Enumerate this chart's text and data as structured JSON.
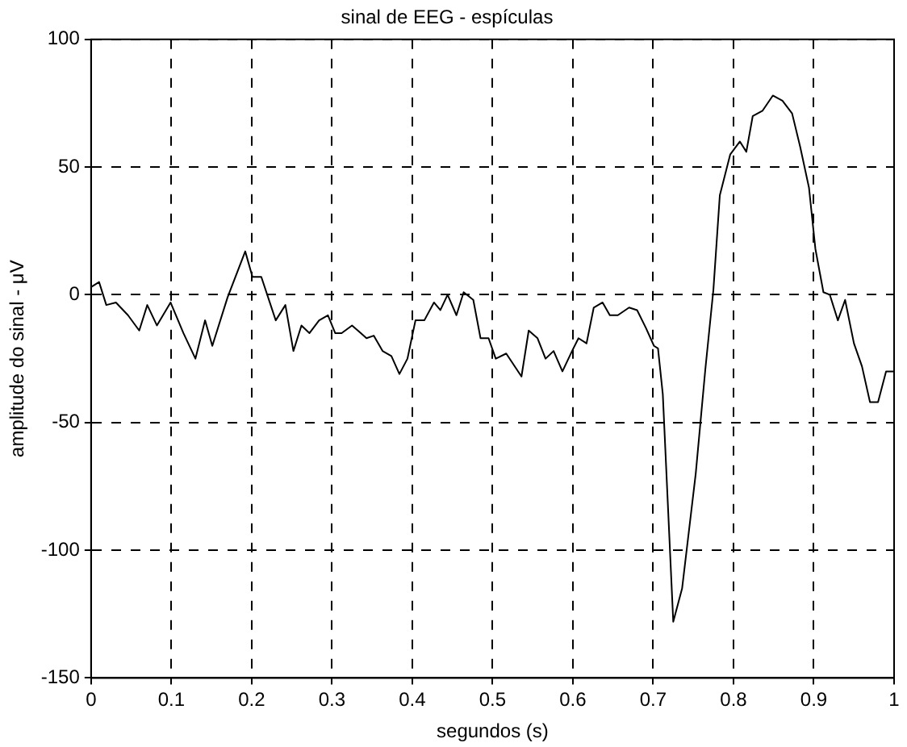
{
  "chart_data": {
    "type": "line",
    "title": "sinal de EEG - espículas",
    "xlabel": "segundos (s)",
    "ylabel": "amplitude do sinal - μV",
    "x": [
      0,
      0.01,
      0.019,
      0.031,
      0.046,
      0.06,
      0.07,
      0.082,
      0.099,
      0.115,
      0.13,
      0.142,
      0.151,
      0.17,
      0.192,
      0.201,
      0.212,
      0.23,
      0.242,
      0.252,
      0.262,
      0.272,
      0.284,
      0.295,
      0.304,
      0.312,
      0.325,
      0.336,
      0.343,
      0.352,
      0.363,
      0.374,
      0.384,
      0.394,
      0.404,
      0.415,
      0.427,
      0.435,
      0.444,
      0.455,
      0.464,
      0.476,
      0.485,
      0.495,
      0.504,
      0.517,
      0.536,
      0.545,
      0.556,
      0.566,
      0.576,
      0.587,
      0.599,
      0.607,
      0.617,
      0.626,
      0.637,
      0.646,
      0.656,
      0.67,
      0.68,
      0.691,
      0.701,
      0.706,
      0.712,
      0.725,
      0.736,
      0.753,
      0.765,
      0.775,
      0.783,
      0.796,
      0.808,
      0.816,
      0.824,
      0.836,
      0.849,
      0.861,
      0.873,
      0.883,
      0.894,
      0.902,
      0.912,
      0.92,
      0.93,
      0.939,
      0.95,
      0.96,
      0.97,
      0.98,
      0.99,
      1.0
    ],
    "series": [
      {
        "color": "#000000",
        "values": [
          3,
          5,
          -4,
          -3,
          -8,
          -14,
          -4,
          -12,
          -3,
          -15,
          -25,
          -10,
          -20,
          -1,
          17,
          7,
          7,
          -10,
          -4,
          -22,
          -12,
          -15,
          -10,
          -8,
          -15,
          -15,
          -12,
          -15,
          -17,
          -16,
          -22,
          -24,
          -31,
          -25,
          -10,
          -10,
          -3,
          -6,
          0,
          -8,
          1,
          -2,
          -17,
          -17,
          -25,
          -23,
          -32,
          -14,
          -17,
          -25,
          -22,
          -30,
          -22,
          -17,
          -19,
          -5,
          -3,
          -8,
          -8,
          -5,
          -6,
          -13,
          -20,
          -21,
          -39,
          -128,
          -115,
          -70,
          -29,
          2,
          39,
          55,
          60,
          56,
          70,
          72,
          78,
          76,
          71,
          58,
          42,
          18,
          1,
          0,
          -10,
          -2,
          -19,
          -28,
          -42,
          -42,
          -30,
          -30
        ]
      }
    ],
    "xlim": [
      0,
      1
    ],
    "xticks": [
      0,
      0.1,
      0.2,
      0.3,
      0.4,
      0.5,
      0.6,
      0.7,
      0.8,
      0.9,
      1
    ],
    "ylim": [
      -150,
      100
    ],
    "yticks": [
      -150,
      -100,
      -50,
      0,
      50,
      100
    ],
    "grid": true,
    "legend": false,
    "marker": "none",
    "line_style": "solid"
  }
}
